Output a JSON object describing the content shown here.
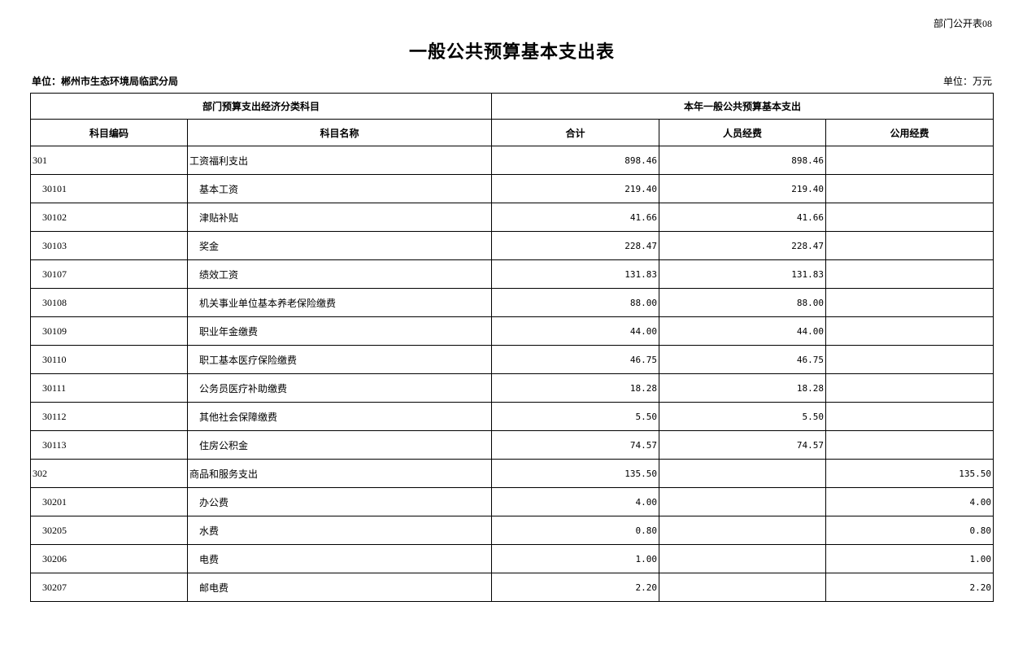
{
  "form_no": "部门公开表08",
  "title": "一般公共预算基本支出表",
  "unit_org": "单位：郴州市生态环境局临武分局",
  "unit_currency": "单位：万元",
  "header": {
    "group1": "部门预算支出经济分类科目",
    "group2": "本年一般公共预算基本支出",
    "cols": [
      "科目编码",
      "科目名称",
      "合计",
      "人员经费",
      "公用经费"
    ]
  },
  "rows": [
    {
      "code": "301",
      "name": "工资福利支出",
      "total": "898.46",
      "personnel": "898.46",
      "public": "",
      "level": 1
    },
    {
      "code": "30101",
      "name": "基本工资",
      "total": "219.40",
      "personnel": "219.40",
      "public": "",
      "level": 2
    },
    {
      "code": "30102",
      "name": "津贴补贴",
      "total": "41.66",
      "personnel": "41.66",
      "public": "",
      "level": 2
    },
    {
      "code": "30103",
      "name": "奖金",
      "total": "228.47",
      "personnel": "228.47",
      "public": "",
      "level": 2
    },
    {
      "code": "30107",
      "name": "绩效工资",
      "total": "131.83",
      "personnel": "131.83",
      "public": "",
      "level": 2
    },
    {
      "code": "30108",
      "name": "机关事业单位基本养老保险缴费",
      "total": "88.00",
      "personnel": "88.00",
      "public": "",
      "level": 2
    },
    {
      "code": "30109",
      "name": "职业年金缴费",
      "total": "44.00",
      "personnel": "44.00",
      "public": "",
      "level": 2
    },
    {
      "code": "30110",
      "name": "职工基本医疗保险缴费",
      "total": "46.75",
      "personnel": "46.75",
      "public": "",
      "level": 2
    },
    {
      "code": "30111",
      "name": "公务员医疗补助缴费",
      "total": "18.28",
      "personnel": "18.28",
      "public": "",
      "level": 2
    },
    {
      "code": "30112",
      "name": "其他社会保障缴费",
      "total": "5.50",
      "personnel": "5.50",
      "public": "",
      "level": 2
    },
    {
      "code": "30113",
      "name": "住房公积金",
      "total": "74.57",
      "personnel": "74.57",
      "public": "",
      "level": 2
    },
    {
      "code": "302",
      "name": "商品和服务支出",
      "total": "135.50",
      "personnel": "",
      "public": "135.50",
      "level": 1
    },
    {
      "code": "30201",
      "name": "办公费",
      "total": "4.00",
      "personnel": "",
      "public": "4.00",
      "level": 2
    },
    {
      "code": "30205",
      "name": "水费",
      "total": "0.80",
      "personnel": "",
      "public": "0.80",
      "level": 2
    },
    {
      "code": "30206",
      "name": "电费",
      "total": "1.00",
      "personnel": "",
      "public": "1.00",
      "level": 2
    },
    {
      "code": "30207",
      "name": "邮电费",
      "total": "2.20",
      "personnel": "",
      "public": "2.20",
      "level": 2
    }
  ]
}
